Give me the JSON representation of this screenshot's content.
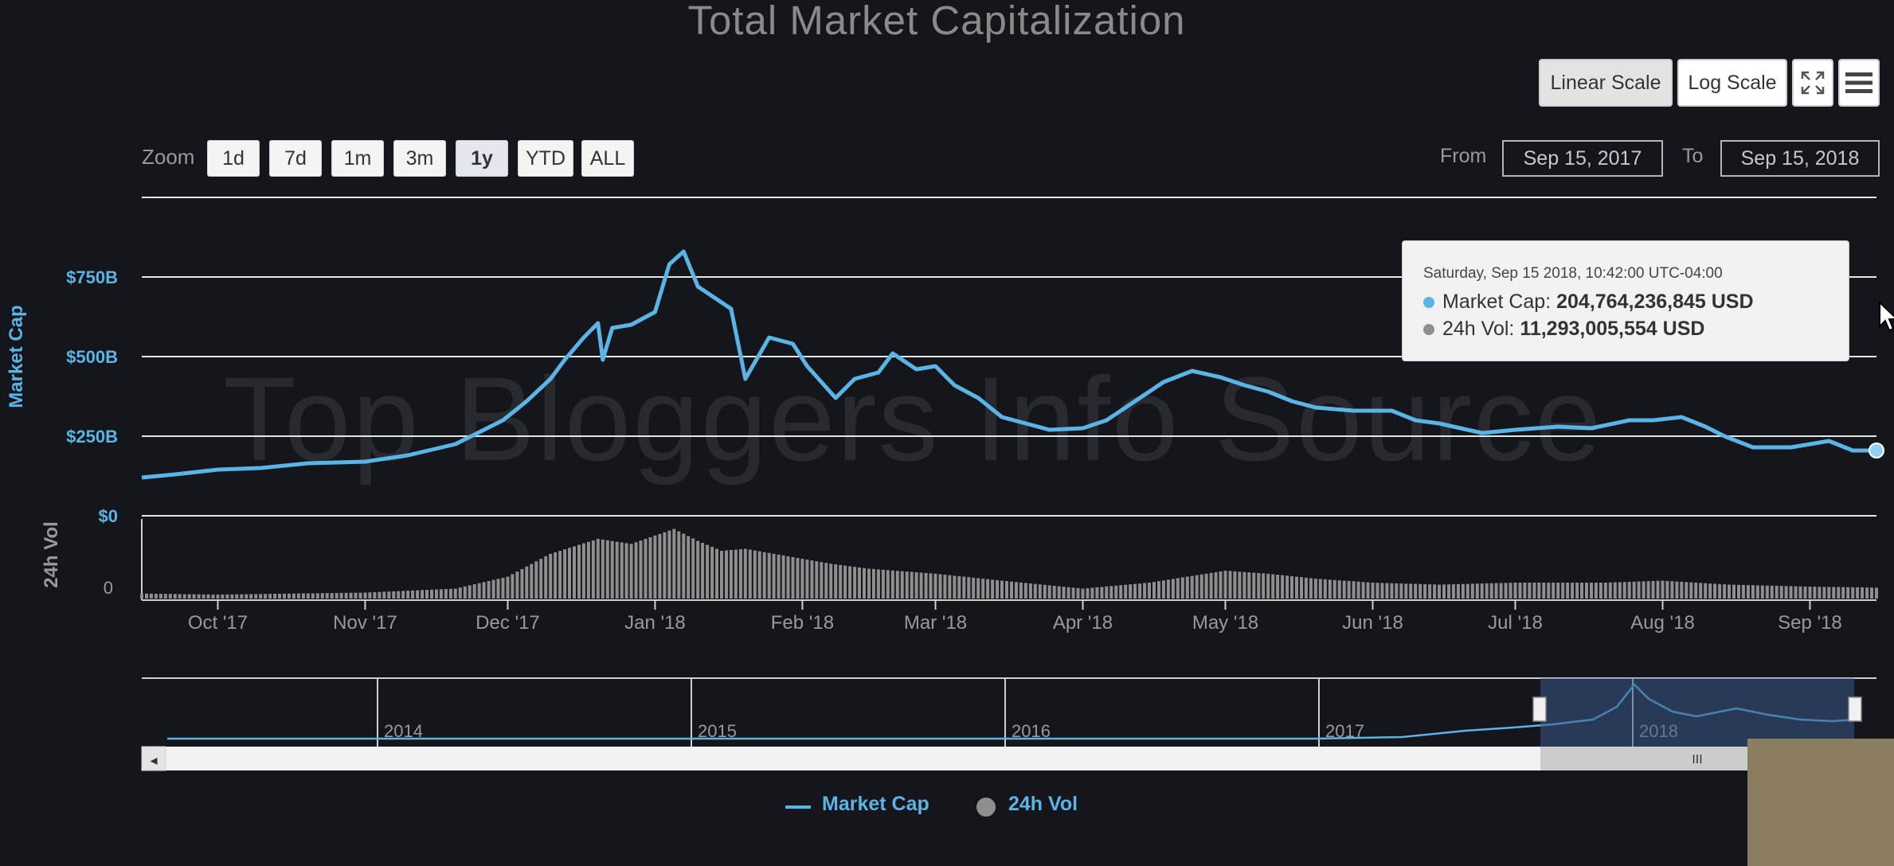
{
  "title": "Total Market Capitalization",
  "controls": {
    "linear_scale": "Linear Scale",
    "log_scale": "Log Scale",
    "zoom_label": "Zoom",
    "zoom_options": [
      "1d",
      "7d",
      "1m",
      "3m",
      "1y",
      "YTD",
      "ALL"
    ],
    "zoom_selected": "1y",
    "from_label": "From",
    "from_value": "Sep 15, 2017",
    "to_label": "To",
    "to_value": "Sep 15, 2018"
  },
  "watermark": "Top Bloggers Info Source",
  "tooltip": {
    "date": "Saturday, Sep 15 2018, 10:42:00 UTC-04:00",
    "market_cap_label": "Market Cap:",
    "market_cap_value": "204,764,236,845 USD",
    "volume_label": "24h Vol:",
    "volume_value": "11,293,005,554 USD"
  },
  "legend": [
    "Market Cap",
    "24h Vol"
  ],
  "colors": {
    "market_cap": "#5ab4e5",
    "volume": "#8f8f8f",
    "background": "#14161b"
  },
  "chart_data": {
    "type": "line",
    "title": "Total Market Capitalization",
    "ylabel": "Market Cap",
    "ylabel2": "24h Vol",
    "y_ticks": [
      "$0",
      "$250B",
      "$500B",
      "$750B"
    ],
    "y2_ticks": [
      "0"
    ],
    "ylim": [
      0,
      1000
    ],
    "x_ticks": [
      "Oct '17",
      "Nov '17",
      "Dec '17",
      "Jan '18",
      "Feb '18",
      "Mar '18",
      "Apr '18",
      "May '18",
      "Jun '18",
      "Jul '18",
      "Aug '18",
      "Sep '18"
    ],
    "series": [
      {
        "name": "Market Cap",
        "x": [
          "2017-09-15",
          "2017-09-22",
          "2017-10-01",
          "2017-10-10",
          "2017-10-20",
          "2017-11-01",
          "2017-11-10",
          "2017-11-20",
          "2017-11-30",
          "2017-12-05",
          "2017-12-10",
          "2017-12-13",
          "2017-12-17",
          "2017-12-20",
          "2017-12-21",
          "2017-12-23",
          "2017-12-27",
          "2018-01-01",
          "2018-01-04",
          "2018-01-07",
          "2018-01-10",
          "2018-01-13",
          "2018-01-17",
          "2018-01-20",
          "2018-01-25",
          "2018-01-30",
          "2018-02-02",
          "2018-02-05",
          "2018-02-08",
          "2018-02-12",
          "2018-02-17",
          "2018-02-20",
          "2018-02-25",
          "2018-03-01",
          "2018-03-05",
          "2018-03-10",
          "2018-03-15",
          "2018-03-20",
          "2018-03-25",
          "2018-04-01",
          "2018-04-06",
          "2018-04-12",
          "2018-04-18",
          "2018-04-24",
          "2018-04-30",
          "2018-05-05",
          "2018-05-10",
          "2018-05-15",
          "2018-05-20",
          "2018-05-28",
          "2018-06-05",
          "2018-06-10",
          "2018-06-15",
          "2018-06-24",
          "2018-07-01",
          "2018-07-10",
          "2018-07-17",
          "2018-07-25",
          "2018-07-30",
          "2018-08-05",
          "2018-08-10",
          "2018-08-14",
          "2018-08-20",
          "2018-08-28",
          "2018-09-05",
          "2018-09-10",
          "2018-09-15"
        ],
        "values": [
          120,
          130,
          145,
          150,
          165,
          170,
          190,
          225,
          300,
          360,
          430,
          490,
          560,
          605,
          490,
          590,
          600,
          640,
          790,
          830,
          720,
          690,
          650,
          430,
          560,
          540,
          470,
          420,
          370,
          430,
          450,
          510,
          460,
          470,
          410,
          370,
          310,
          290,
          270,
          275,
          300,
          360,
          420,
          455,
          435,
          410,
          390,
          360,
          340,
          330,
          330,
          300,
          290,
          260,
          270,
          280,
          275,
          300,
          300,
          310,
          280,
          250,
          215,
          215,
          235,
          205,
          205
        ]
      },
      {
        "name": "24h Vol",
        "x": [
          "2017-09-15",
          "2017-10-01",
          "2017-11-01",
          "2017-11-20",
          "2017-12-01",
          "2017-12-10",
          "2017-12-20",
          "2017-12-27",
          "2018-01-05",
          "2018-01-10",
          "2018-01-15",
          "2018-01-20",
          "2018-02-01",
          "2018-02-07",
          "2018-02-15",
          "2018-03-01",
          "2018-03-15",
          "2018-04-01",
          "2018-04-15",
          "2018-05-01",
          "2018-05-10",
          "2018-05-20",
          "2018-06-01",
          "2018-06-15",
          "2018-07-01",
          "2018-07-20",
          "2018-08-01",
          "2018-08-15",
          "2018-09-01",
          "2018-09-15"
        ],
        "values": [
          5,
          4,
          6,
          10,
          22,
          45,
          60,
          55,
          70,
          58,
          48,
          50,
          40,
          35,
          30,
          25,
          18,
          10,
          16,
          28,
          25,
          20,
          16,
          14,
          16,
          16,
          18,
          14,
          12,
          11
        ]
      }
    ]
  },
  "navigator": {
    "years": [
      "2014",
      "2015",
      "2016",
      "2017",
      "2018"
    ]
  },
  "scrollbar": {
    "left_arrow": "◂",
    "grip": "III"
  }
}
